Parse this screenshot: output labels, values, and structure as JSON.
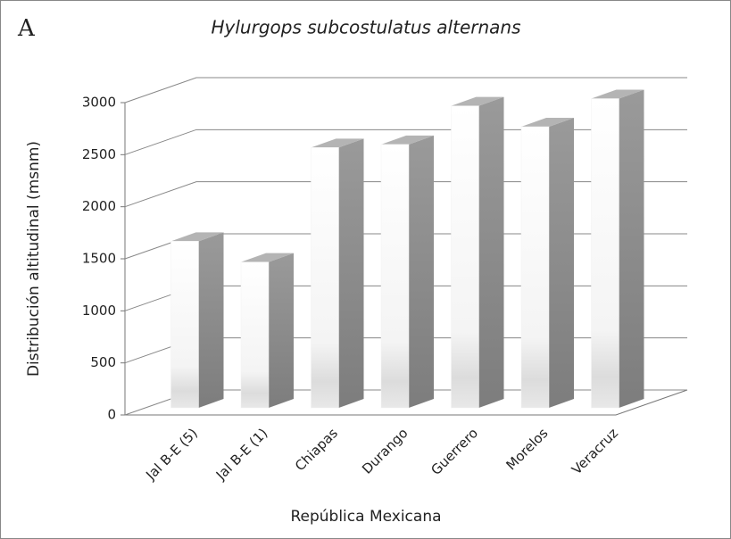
{
  "chart_data": {
    "type": "bar3d",
    "panel_label": "A",
    "title": "Hylurgops subcostulatus alternans",
    "x_label": "República Mexicana",
    "y_label": "Distribución altitudinal (msnm)",
    "categories": [
      "Jal B-E (5)",
      "Jal B-E (1)",
      "Chiapas",
      "Durango",
      "Guerrero",
      "Morelos",
      "Veracruz"
    ],
    "values": [
      1600,
      1400,
      2500,
      2530,
      2900,
      2700,
      2970
    ],
    "ylim": [
      0,
      3000
    ],
    "yticks": [
      0,
      500,
      1000,
      1500,
      2000,
      2500,
      3000
    ],
    "grid": true,
    "color": "#f2f2f2"
  }
}
